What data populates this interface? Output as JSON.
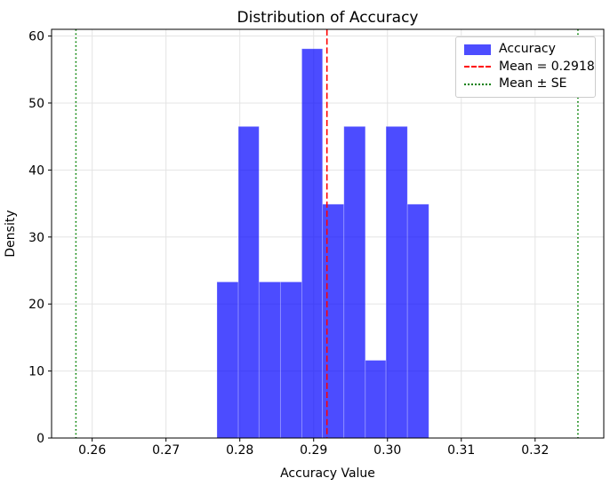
{
  "figure": {
    "title": "Distribution of Accuracy",
    "xlabel": "Accuracy Value",
    "ylabel": "Density"
  },
  "chart_data": {
    "type": "bar",
    "subtype": "histogram",
    "title": "Distribution of Accuracy",
    "xlabel": "Accuracy Value",
    "ylabel": "Density",
    "bin_edges": [
      0.2769,
      0.2798,
      0.2826,
      0.2855,
      0.2884,
      0.2912,
      0.2941,
      0.297,
      0.2998,
      0.3027,
      0.3056
    ],
    "densities": [
      23.3,
      46.5,
      23.3,
      23.3,
      58.1,
      34.9,
      46.5,
      11.6,
      46.5,
      34.9
    ],
    "counts": [
      2,
      4,
      2,
      2,
      5,
      3,
      4,
      1,
      4,
      3
    ],
    "n_samples": 30,
    "mean": 0.2918,
    "se_lines": [
      0.2578,
      0.3258
    ],
    "xlim": [
      0.2545,
      0.3293
    ],
    "ylim": [
      0,
      61
    ],
    "xticks": [
      0.26,
      0.27,
      0.28,
      0.29,
      0.3,
      0.31,
      0.32
    ],
    "xtick_labels": [
      "0.26",
      "0.27",
      "0.28",
      "0.29",
      "0.30",
      "0.31",
      "0.32"
    ],
    "yticks": [
      0,
      10,
      20,
      30,
      40,
      50,
      60
    ],
    "ytick_labels": [
      "0",
      "10",
      "20",
      "30",
      "40",
      "50",
      "60"
    ],
    "grid": true,
    "legend_position": "upper right"
  },
  "legend": {
    "entries": [
      {
        "swatch": "patch",
        "color": "#4d4dff",
        "label": "Accuracy"
      },
      {
        "swatch": "dashed-line",
        "color": "#ff0000",
        "label": "Mean = 0.2918"
      },
      {
        "swatch": "dotted-line",
        "color": "#008000",
        "label": "Mean ± SE"
      }
    ]
  },
  "colors": {
    "bar_fill": "#0000ff",
    "bar_opacity": "0.7",
    "mean_line": "#ff0000",
    "se_line": "#008000",
    "grid": "#e4e4e4",
    "spine": "#000000",
    "background": "#ffffff",
    "text": "#000000"
  }
}
